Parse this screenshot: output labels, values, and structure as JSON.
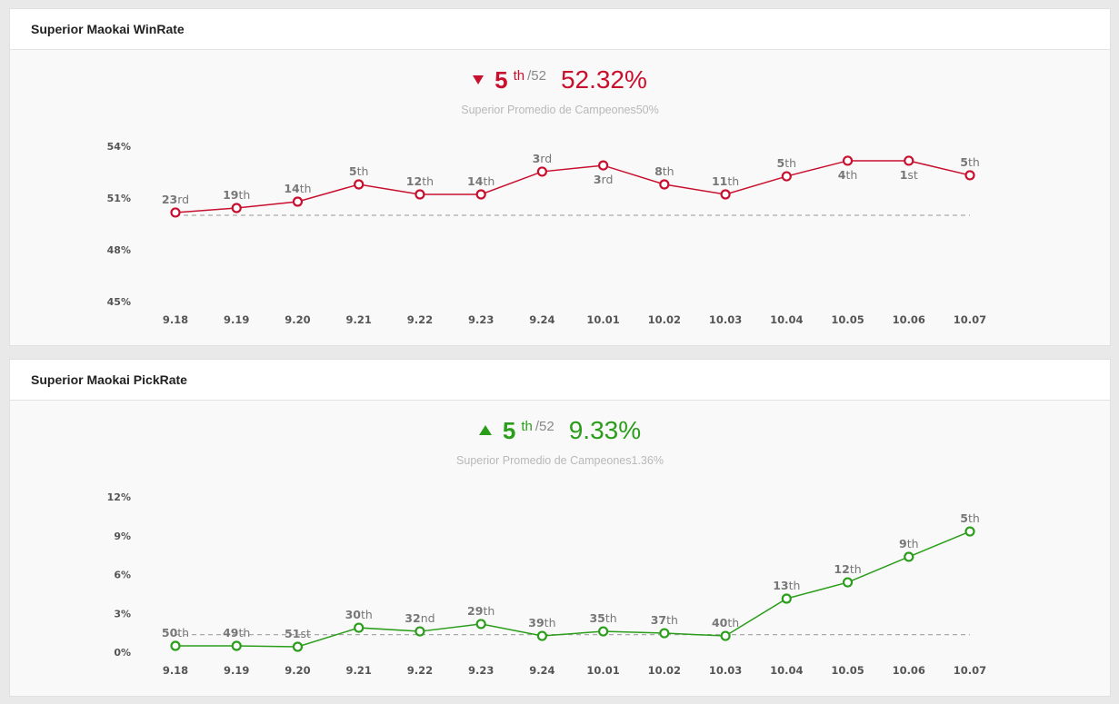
{
  "panels": [
    {
      "title": "Superior Maokai WinRate",
      "trend": "down",
      "trend_icon": "triangle-down-icon",
      "rank": "5",
      "rank_suffix": "th",
      "rank_total": "/52",
      "value": "52.32%",
      "average_text": "Superior Promedio de Campeones50%",
      "color": "#c8102e"
    },
    {
      "title": "Superior Maokai PickRate",
      "trend": "up",
      "trend_icon": "triangle-up-icon",
      "rank": "5",
      "rank_suffix": "th",
      "rank_total": "/52",
      "value": "9.33%",
      "average_text": "Superior Promedio de Campeones1.36%",
      "color": "#2a9d1a"
    }
  ],
  "chart_data": [
    {
      "type": "line",
      "title": "Superior Maokai WinRate",
      "x": [
        "9.18",
        "9.19",
        "9.20",
        "9.21",
        "9.22",
        "9.23",
        "9.24",
        "10.01",
        "10.02",
        "10.03",
        "10.04",
        "10.05",
        "10.06",
        "10.07"
      ],
      "series": [
        {
          "name": "WinRate",
          "values": [
            50.16,
            50.42,
            50.79,
            51.79,
            51.21,
            51.21,
            52.53,
            52.89,
            51.79,
            51.21,
            52.26,
            53.16,
            53.16,
            52.32
          ],
          "rank_labels": [
            "23rd",
            "19th",
            "14th",
            "5th",
            "12th",
            "14th",
            "3rd",
            "3rd",
            "8th",
            "11th",
            "5th",
            "4th",
            "1st",
            "5th"
          ],
          "label_position": [
            "above",
            "above",
            "above",
            "above",
            "above",
            "above",
            "above",
            "below",
            "above",
            "above",
            "above",
            "below",
            "below",
            "above"
          ]
        }
      ],
      "reference_line": {
        "name": "average",
        "value": 50
      },
      "y_ticks": [
        54,
        51,
        48,
        45
      ],
      "y_tick_labels": [
        "54%",
        "51%",
        "48%",
        "45%"
      ],
      "ylim": [
        45,
        54
      ],
      "color": "#c8102e",
      "grid": false,
      "xlabel": "",
      "ylabel": ""
    },
    {
      "type": "line",
      "title": "Superior Maokai PickRate",
      "x": [
        "9.18",
        "9.19",
        "9.20",
        "9.21",
        "9.22",
        "9.23",
        "9.24",
        "10.01",
        "10.02",
        "10.03",
        "10.04",
        "10.05",
        "10.06",
        "10.07"
      ],
      "series": [
        {
          "name": "PickRate",
          "values": [
            0.49,
            0.49,
            0.42,
            1.89,
            1.61,
            2.18,
            1.26,
            1.61,
            1.47,
            1.26,
            4.14,
            5.4,
            7.37,
            9.33
          ],
          "rank_labels": [
            "50th",
            "49th",
            "51st",
            "30th",
            "32nd",
            "29th",
            "39th",
            "35th",
            "37th",
            "40th",
            "13th",
            "12th",
            "9th",
            "5th"
          ],
          "label_position": [
            "above",
            "above",
            "above",
            "above",
            "above",
            "above",
            "above",
            "above",
            "above",
            "above",
            "above",
            "above",
            "above",
            "above"
          ]
        }
      ],
      "reference_line": {
        "name": "average",
        "value": 1.36
      },
      "y_ticks": [
        12,
        9,
        6,
        3,
        0
      ],
      "y_tick_labels": [
        "12%",
        "9%",
        "6%",
        "3%",
        "0%"
      ],
      "ylim": [
        0,
        12
      ],
      "color": "#2a9d1a",
      "grid": false,
      "xlabel": "",
      "ylabel": ""
    }
  ]
}
